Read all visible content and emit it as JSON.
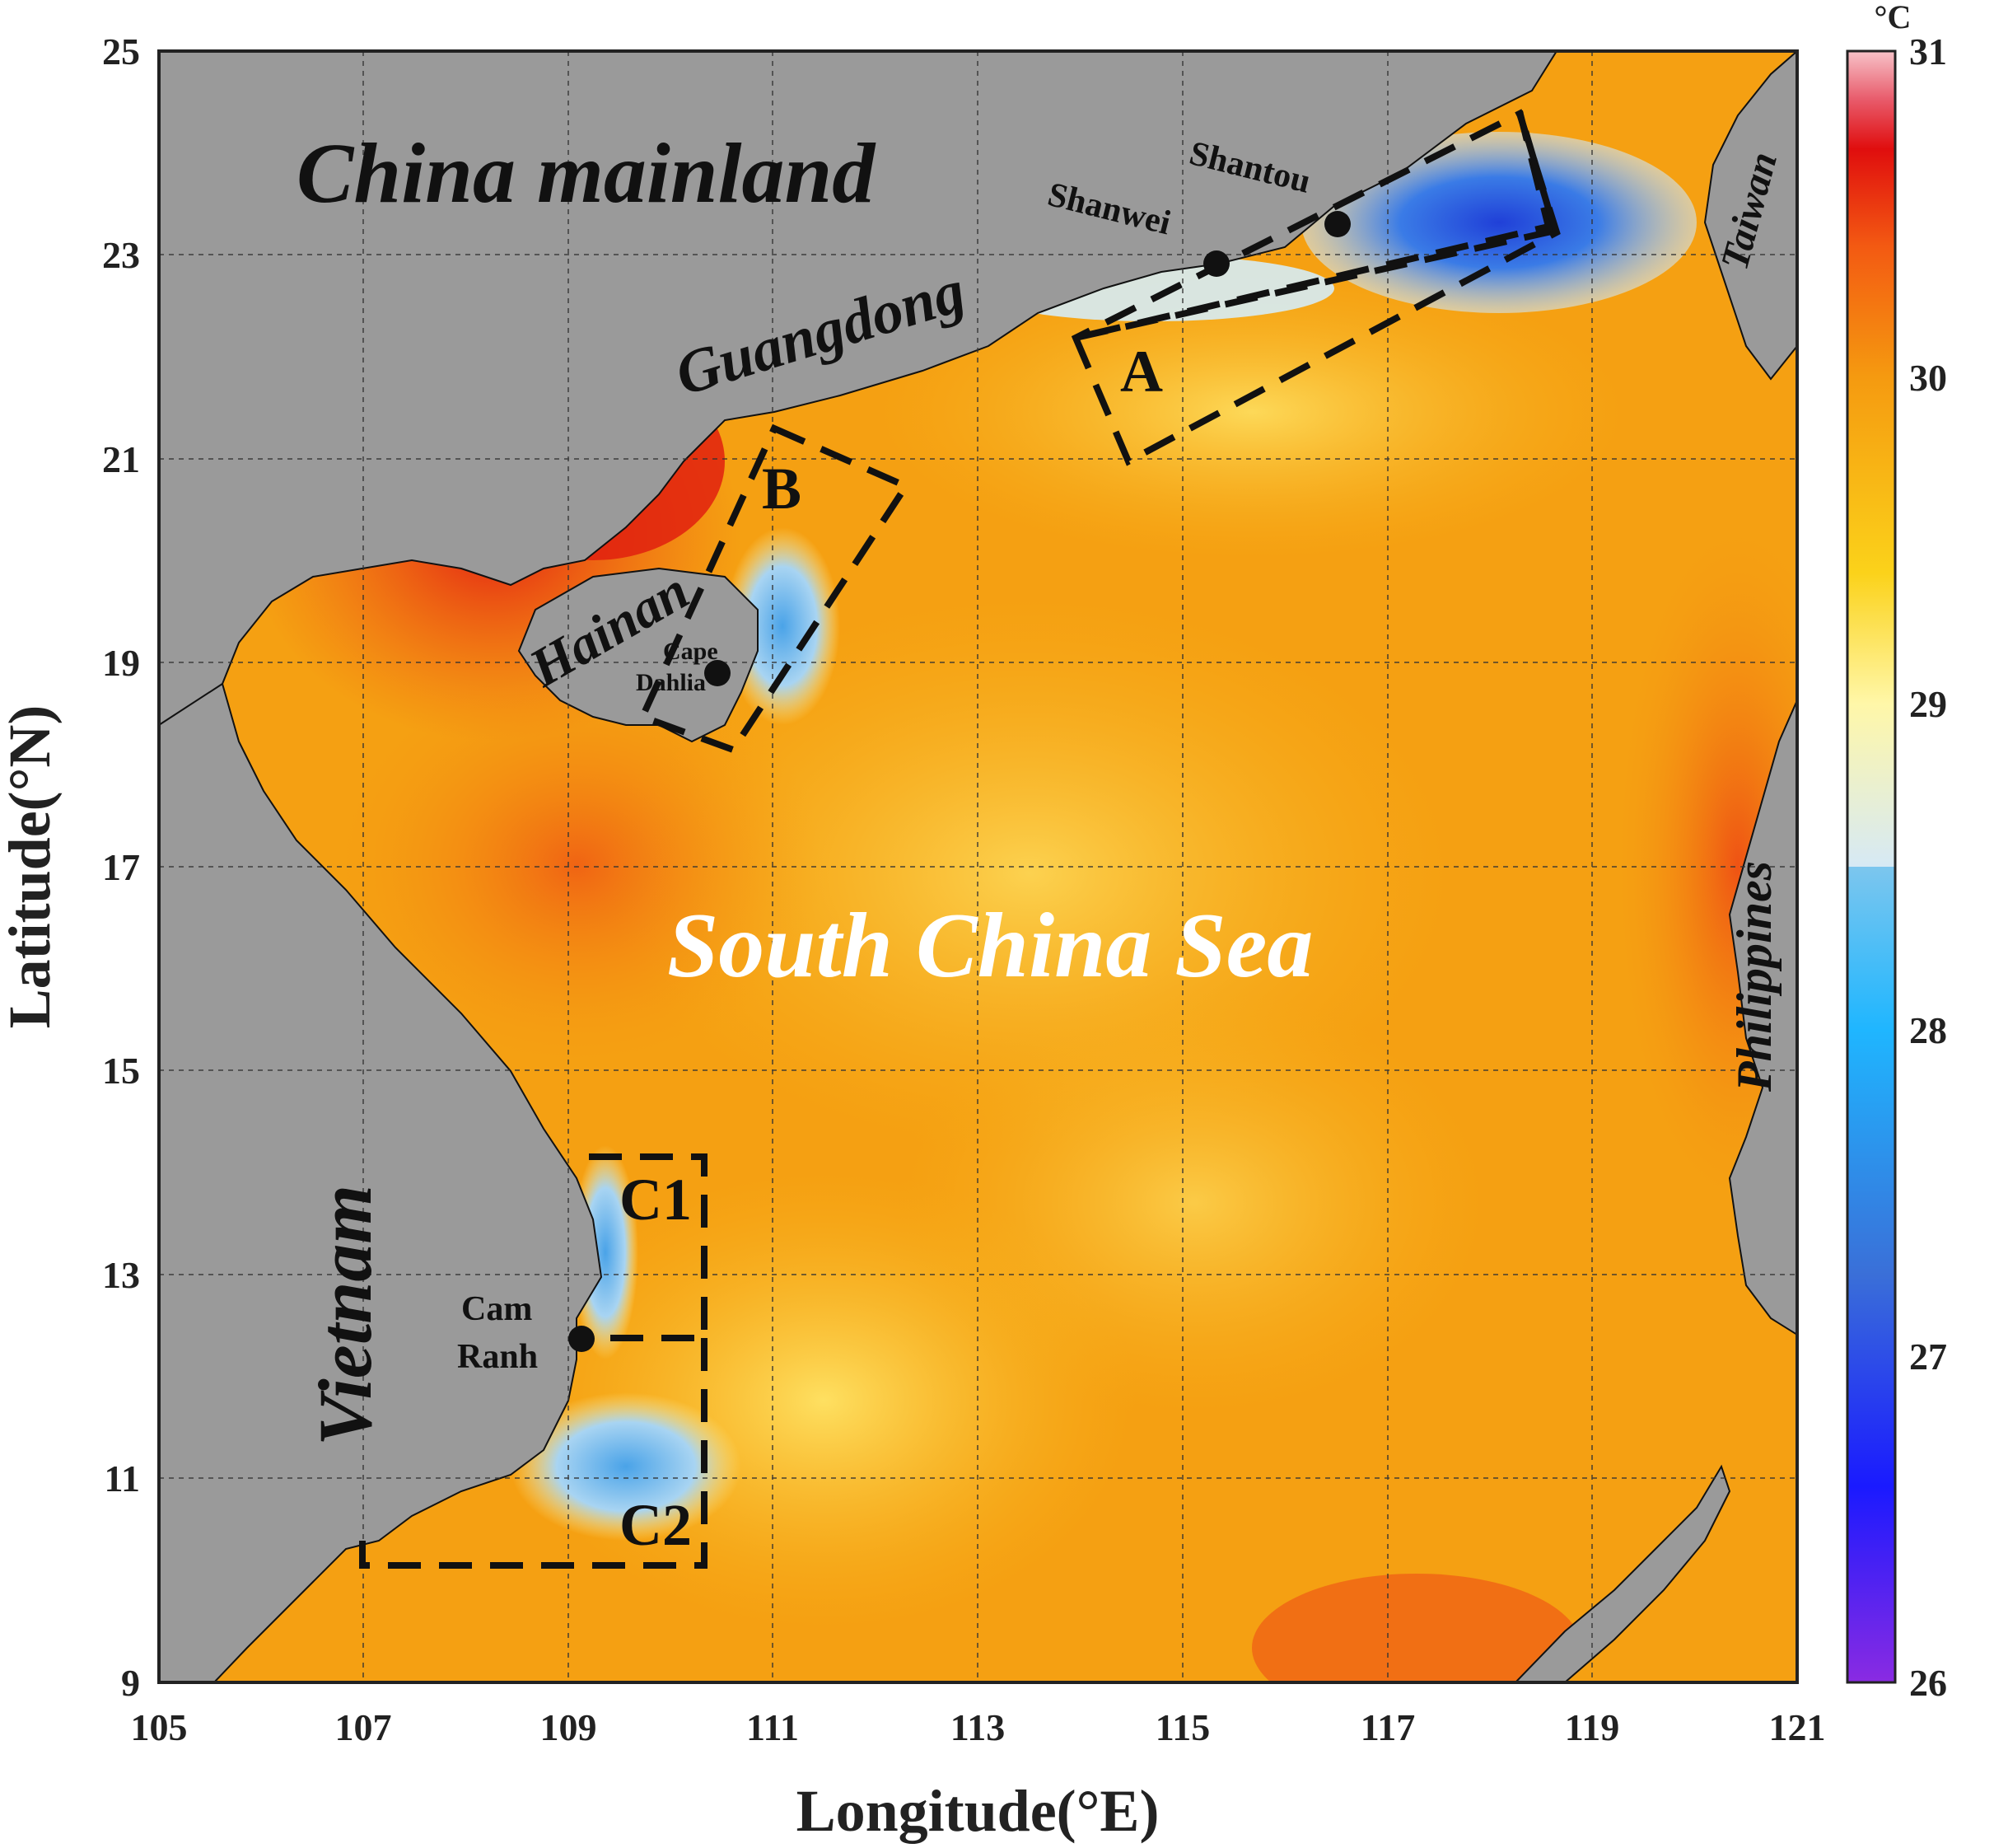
{
  "axes": {
    "x_label": "Longitude(°E)",
    "y_label": "Latitude(°N)",
    "x_ticks": [
      "105",
      "107",
      "109",
      "111",
      "113",
      "115",
      "117",
      "119",
      "121"
    ],
    "y_ticks": [
      "9",
      "11",
      "13",
      "15",
      "17",
      "19",
      "21",
      "23",
      "25"
    ]
  },
  "colorbar": {
    "unit": "°C",
    "ticks": [
      "26",
      "27",
      "28",
      "29",
      "30",
      "31"
    ],
    "range": [
      26,
      31
    ]
  },
  "regions": {
    "china_mainland": "China mainland",
    "guangdong": "Guangdong",
    "hainan": "Hainan",
    "taiwan": "Taiwan",
    "vietnam": "Vietnam",
    "philippines": "Philippines",
    "south_china_sea": "South China Sea"
  },
  "boxes": {
    "a": "A",
    "b": "B",
    "c1": "C1",
    "c2": "C2"
  },
  "cities": {
    "shanwei": "Shanwei",
    "shantou": "Shantou",
    "cape_dahlia_1": "Cape",
    "cape_dahlia_2": "Dahlia",
    "cam_ranh_1": "Cam",
    "cam_ranh_2": "Ranh"
  },
  "colors": {
    "land": "#9a9a9a",
    "sea_warm": "#f59a10",
    "sea_hot": "#e8401a",
    "upwelling_cool": "#3a8ee6"
  }
}
